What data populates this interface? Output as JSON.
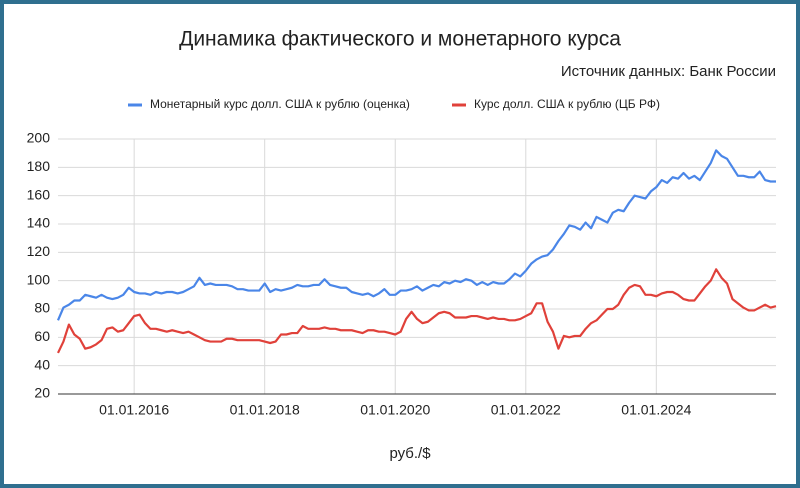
{
  "chart_data": {
    "type": "line",
    "title": "Динамика фактического и монетарного курса",
    "subtitle": "Источник данных: Банк России",
    "xlabel": "руб./$",
    "legend": "top",
    "grid": true,
    "x": [
      "01.11.2014",
      "01.12.2014",
      "01.01.2015",
      "01.02.2015",
      "01.03.2015",
      "01.04.2015",
      "01.05.2015",
      "01.06.2015",
      "01.07.2015",
      "01.08.2015",
      "01.09.2015",
      "01.10.2015",
      "01.11.2015",
      "01.12.2015",
      "01.01.2016",
      "01.02.2016",
      "01.03.2016",
      "01.04.2016",
      "01.05.2016",
      "01.06.2016",
      "01.07.2016",
      "01.08.2016",
      "01.09.2016",
      "01.10.2016",
      "01.11.2016",
      "01.12.2016",
      "01.01.2017",
      "01.02.2017",
      "01.03.2017",
      "01.04.2017",
      "01.05.2017",
      "01.06.2017",
      "01.07.2017",
      "01.08.2017",
      "01.09.2017",
      "01.10.2017",
      "01.11.2017",
      "01.12.2017",
      "01.01.2018",
      "01.02.2018",
      "01.03.2018",
      "01.04.2018",
      "01.05.2018",
      "01.06.2018",
      "01.07.2018",
      "01.08.2018",
      "01.09.2018",
      "01.10.2018",
      "01.11.2018",
      "01.12.2018",
      "01.01.2019",
      "01.02.2019",
      "01.03.2019",
      "01.04.2019",
      "01.05.2019",
      "01.06.2019",
      "01.07.2019",
      "01.08.2019",
      "01.09.2019",
      "01.10.2019",
      "01.11.2019",
      "01.12.2019",
      "01.01.2020",
      "01.02.2020",
      "01.03.2020",
      "01.04.2020",
      "01.05.2020",
      "01.06.2020",
      "01.07.2020",
      "01.08.2020",
      "01.09.2020",
      "01.10.2020",
      "01.11.2020",
      "01.12.2020",
      "01.01.2021",
      "01.02.2021",
      "01.03.2021",
      "01.04.2021",
      "01.05.2021",
      "01.06.2021",
      "01.07.2021",
      "01.08.2021",
      "01.09.2021",
      "01.10.2021",
      "01.11.2021",
      "01.12.2021",
      "01.01.2022",
      "01.02.2022",
      "01.03.2022",
      "01.04.2022",
      "01.05.2022",
      "01.06.2022",
      "01.07.2022",
      "01.08.2022",
      "01.09.2022",
      "01.10.2022",
      "01.11.2022",
      "01.12.2022",
      "01.01.2023",
      "01.02.2023",
      "01.03.2023",
      "01.04.2023",
      "01.05.2023",
      "01.06.2023",
      "01.07.2023",
      "01.08.2023",
      "01.09.2023",
      "01.10.2023",
      "01.11.2023",
      "01.12.2023",
      "01.01.2024",
      "01.02.2024",
      "01.03.2024",
      "01.04.2024",
      "01.05.2024",
      "01.06.2024",
      "01.07.2024",
      "01.08.2024",
      "01.09.2024",
      "01.10.2024",
      "01.11.2024",
      "01.12.2024",
      "01.01.2025",
      "01.02.2025",
      "01.03.2025",
      "01.04.2025",
      "01.05.2025",
      "01.06.2025",
      "01.07.2025",
      "01.08.2025",
      "01.09.2025",
      "01.10.2025",
      "01.11.2025"
    ],
    "series": [
      {
        "name": "Монетарный курс долл. США к рублю (оценка)",
        "color": "#4a86e8",
        "values": [
          72,
          81,
          83,
          86,
          86,
          90,
          89,
          88,
          90,
          88,
          87,
          88,
          90,
          95,
          92,
          91,
          91,
          90,
          92,
          91,
          92,
          92,
          91,
          92,
          94,
          96,
          102,
          97,
          98,
          97,
          97,
          97,
          96,
          94,
          94,
          93,
          93,
          93,
          98,
          92,
          94,
          93,
          94,
          95,
          97,
          96,
          96,
          97,
          97,
          101,
          97,
          96,
          95,
          95,
          92,
          91,
          90,
          91,
          89,
          91,
          94,
          90,
          90,
          93,
          93,
          94,
          96,
          93,
          95,
          97,
          96,
          99,
          98,
          100,
          99,
          101,
          100,
          97,
          99,
          97,
          99,
          98,
          98,
          101,
          105,
          103,
          107,
          112,
          115,
          117,
          118,
          122,
          128,
          133,
          139,
          138,
          136,
          141,
          137,
          145,
          143,
          141,
          148,
          150,
          149,
          155,
          160,
          159,
          158,
          163,
          166,
          171,
          169,
          173,
          172,
          176,
          172,
          174,
          171,
          177,
          183,
          192,
          188,
          186,
          180,
          174,
          174,
          173,
          173,
          177,
          171,
          170,
          170
        ]
      },
      {
        "name": "Курс долл. США к рублю (ЦБ РФ)",
        "color": "#e0413a",
        "values": [
          49,
          57,
          69,
          62,
          59,
          52,
          53,
          55,
          58,
          66,
          67,
          64,
          65,
          70,
          75,
          76,
          70,
          66,
          66,
          65,
          64,
          65,
          64,
          63,
          64,
          62,
          60,
          58,
          57,
          57,
          57,
          59,
          59,
          58,
          58,
          58,
          58,
          58,
          57,
          56,
          57,
          62,
          62,
          63,
          63,
          68,
          66,
          66,
          66,
          67,
          66,
          66,
          65,
          65,
          65,
          64,
          63,
          65,
          65,
          64,
          64,
          63,
          62,
          64,
          73,
          78,
          73,
          70,
          71,
          74,
          77,
          78,
          77,
          74,
          74,
          74,
          75,
          75,
          74,
          73,
          74,
          73,
          73,
          72,
          72,
          73,
          75,
          77,
          84,
          84,
          71,
          64,
          52,
          61,
          60,
          61,
          61,
          66,
          70,
          72,
          76,
          80,
          80,
          83,
          90,
          95,
          97,
          96,
          90,
          90,
          89,
          91,
          92,
          92,
          90,
          87,
          86,
          86,
          91,
          96,
          100,
          108,
          102,
          98,
          87,
          84,
          81,
          79,
          79,
          81,
          83,
          81,
          82
        ]
      }
    ],
    "xlim": [
      "01.11.2014",
      "01.11.2025"
    ],
    "xticks": [
      "01.01.2016",
      "01.01.2018",
      "01.01.2020",
      "01.01.2022",
      "01.01.2024"
    ],
    "ylim": [
      20,
      200
    ],
    "yticks": [
      20,
      40,
      60,
      80,
      100,
      120,
      140,
      160,
      180,
      200
    ]
  }
}
